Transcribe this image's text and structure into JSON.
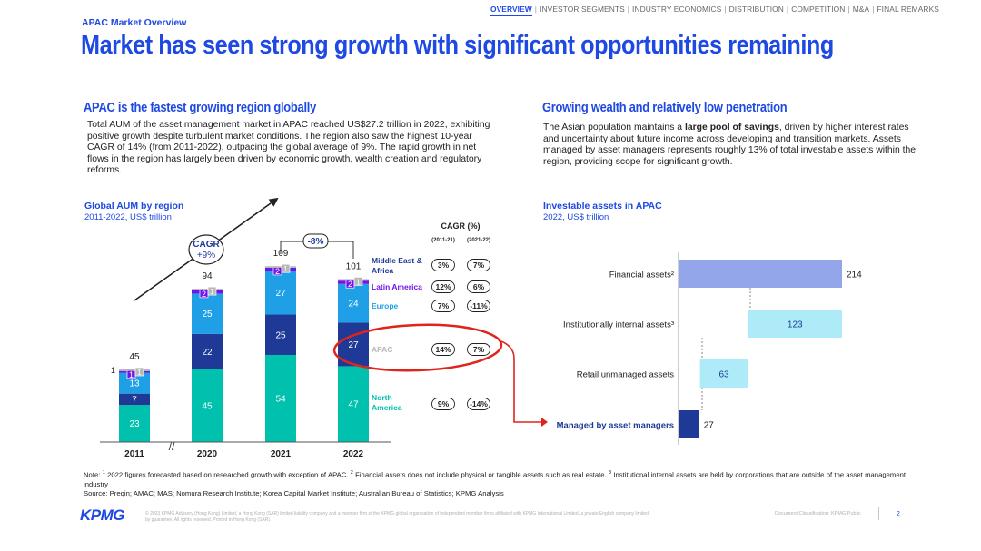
{
  "nav": {
    "items": [
      "OVERVIEW",
      "INVESTOR SEGMENTS",
      "INDUSTRY ECONOMICS",
      "DISTRIBUTION",
      "COMPETITION",
      "M&A",
      "FINAL REMARKS"
    ],
    "active": "OVERVIEW"
  },
  "header": {
    "kicker": "APAC Market Overview",
    "title": "Market has seen strong growth with significant opportunities remaining"
  },
  "left": {
    "heading": "APAC is the fastest growing region globally",
    "body": "Total AUM of the asset management market in APAC reached US$27.2 trillion in 2022, exhibiting positive growth despite turbulent market conditions. The region also saw the highest 10-year CAGR of 14% (from 2011-2022), outpacing the global average of 9%. The rapid growth in net flows in the region has largely been driven by economic growth, wealth creation and regulatory reforms."
  },
  "right": {
    "heading": "Growing wealth and relatively low penetration",
    "body_pre": "The Asian population maintains a ",
    "body_bold": "large pool of savings",
    "body_post": ", driven by higher interest rates and uncertainty about future income across developing and transition markets. Assets managed by asset managers represents roughly 13% of total investable assets within the region, providing scope for significant growth."
  },
  "chart_data": [
    {
      "type": "bar",
      "stacked": true,
      "title": "Global AUM by region",
      "subtitle": "2011-2022, US$ trillion",
      "categories": [
        "2011",
        "2020",
        "2021",
        "2022"
      ],
      "series": [
        {
          "name": "North America",
          "values": [
            23,
            45,
            54,
            47
          ],
          "color": "#00c0ae"
        },
        {
          "name": "APAC",
          "values": [
            7,
            22,
            25,
            27
          ],
          "color": "#1e3a96"
        },
        {
          "name": "Europe",
          "values": [
            13,
            25,
            27,
            24
          ],
          "color": "#1e9fe6"
        },
        {
          "name": "Latin America",
          "values": [
            1,
            2,
            2,
            2
          ],
          "color": "#7213ea"
        },
        {
          "name": "Middle East & Africa",
          "values": [
            1,
            1,
            1,
            1
          ],
          "color": "#b8b8b8"
        }
      ],
      "totals": [
        "45",
        "94",
        "109",
        "101"
      ],
      "axis_break_label": "//",
      "annotations": {
        "cagr_label": "CAGR",
        "cagr_value": "+9%",
        "yoy_change": "-8%"
      },
      "cagr_table": {
        "title": "CAGR (%)",
        "columns": [
          "(2011-21)",
          "(2021-22)"
        ],
        "rows": [
          {
            "region": "Middle East & Africa",
            "v1": "3%",
            "v2": "7%"
          },
          {
            "region": "Latin America",
            "v1": "12%",
            "v2": "6%"
          },
          {
            "region": "Europe",
            "v1": "7%",
            "v2": "-11%"
          },
          {
            "region": "APAC",
            "v1": "14%",
            "v2": "7%"
          },
          {
            "region": "North America",
            "v1": "9%",
            "v2": "-14%"
          }
        ],
        "label_colors": [
          "#1e3a96",
          "#7213ea",
          "#1e9fe6",
          "#b8b8b8",
          "#00c0ae"
        ]
      }
    },
    {
      "type": "bar",
      "orientation": "horizontal",
      "waterfall": true,
      "title": "Investable assets in APAC",
      "subtitle": "2022, US$ trillion",
      "categories": [
        "Financial assets²",
        "Institutionally internal assets³",
        "Retail unmanaged assets",
        "Managed by asset managers"
      ],
      "values": [
        214,
        123,
        63,
        27
      ],
      "colors": [
        "#93a6ea",
        "#acebf7",
        "#acebf7",
        "#1e3a96"
      ]
    }
  ],
  "notes": {
    "line1_a": "Note: ",
    "sup1": "1",
    "line1_b": " 2022 figures forecasted based on researched growth with exception of APAC. ",
    "sup2": "2",
    "line1_c": " Financial assets does not include physical or tangible assets such as real estate. ",
    "sup3": "3",
    "line1_d": " Institutional internal assets are held by corporations that are outside of the asset management industry",
    "source": "Source: Preqin; AMAC; MAS; Nomura Research Institute; Korea Capital Market Institute; Australian Bureau of Statistics; KPMG Analysis"
  },
  "footer": {
    "logo": "KPMG",
    "legal": "© 2023 KPMG Advisory (Hong Kong) Limited, a Hong Kong (SAR) limited liability company and a member firm of the KPMG global organisation of independent member firms affiliated with KPMG International Limited, a private English company limited by guarantee. All rights reserved. Printed in Hong Kong (SAR).",
    "classification": "Document Classification: KPMG Public",
    "page": "2"
  },
  "colors": {
    "accent": "#1e49e2",
    "highlight": "#e0231b"
  }
}
